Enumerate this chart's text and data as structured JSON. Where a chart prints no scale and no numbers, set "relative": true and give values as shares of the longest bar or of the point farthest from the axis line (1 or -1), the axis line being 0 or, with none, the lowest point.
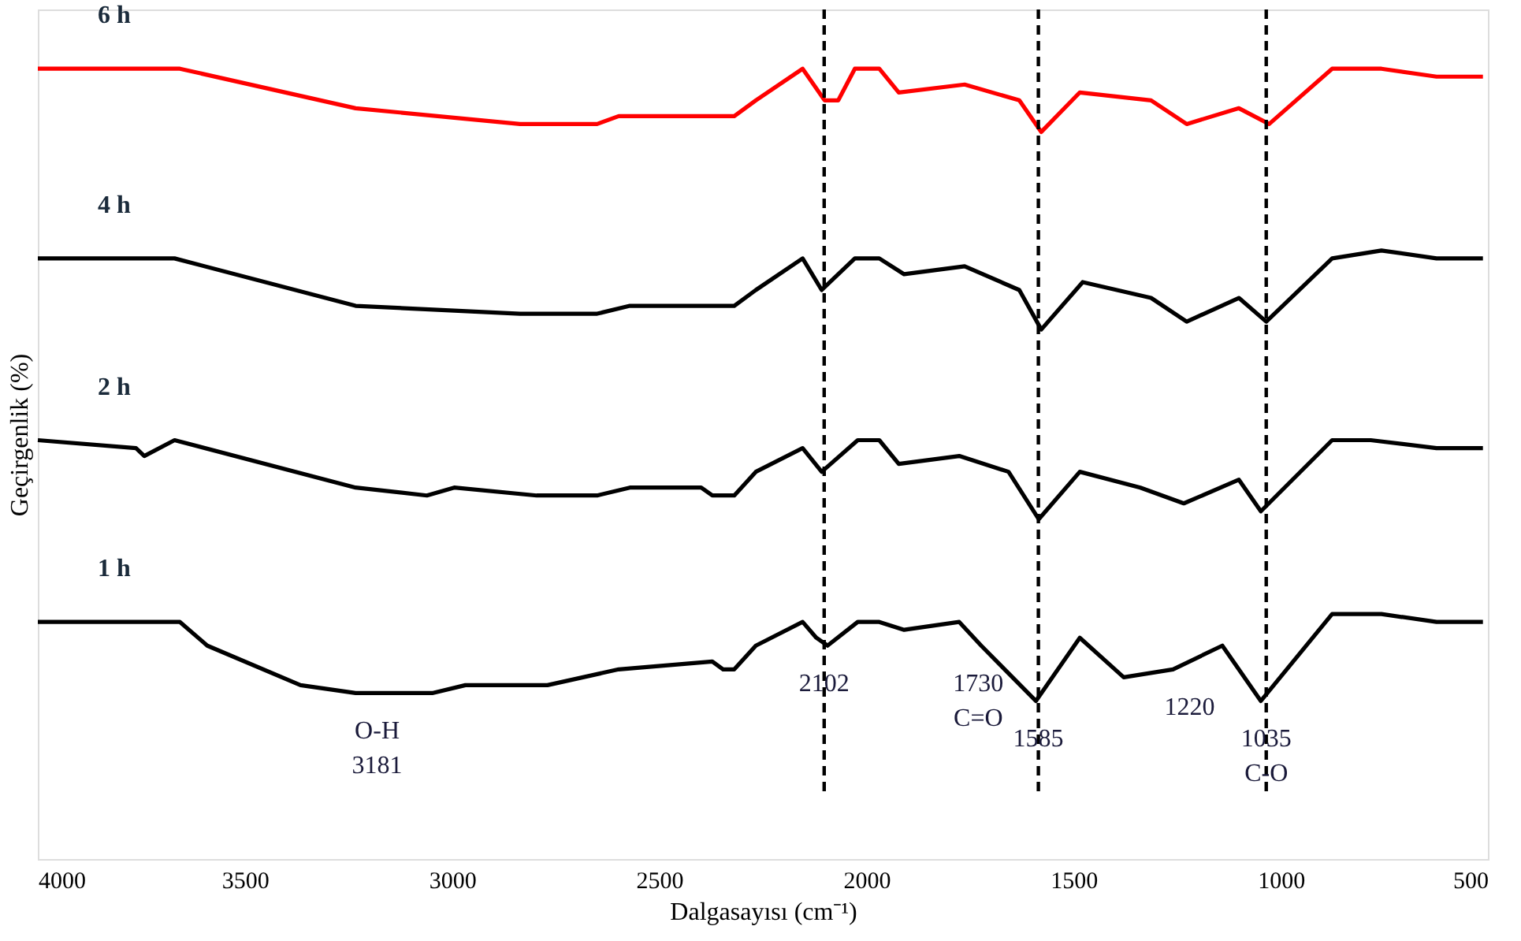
{
  "chart_data": {
    "type": "line",
    "relative": true,
    "xlabel": "Dalgasayısı (cm⁻¹)",
    "ylabel": "Geçirgenlik  (%)",
    "xlim": [
      4000,
      500
    ],
    "xticks": [
      4000,
      3500,
      3000,
      2500,
      2000,
      1500,
      1000,
      500
    ],
    "tick_labels": "x",
    "grid": false,
    "legend": false,
    "line_style": "solid",
    "marker": "none",
    "series": [
      {
        "name": "6 h",
        "color": "#ff0000",
        "x": [
          4000,
          3657,
          3233,
          2836,
          2650,
          2598,
          2333,
          2319,
          2267,
          2154,
          2101,
          2068,
          2028,
          1969,
          1922,
          1763,
          1631,
          1578,
          1485,
          1313,
          1227,
          1101,
          1028,
          876,
          757,
          624,
          512
        ],
        "values": [
          1.0,
          1.0,
          0.95,
          0.93,
          0.93,
          0.94,
          0.94,
          0.94,
          0.96,
          1.0,
          0.96,
          0.96,
          1.0,
          1.0,
          0.97,
          0.98,
          0.96,
          0.92,
          0.97,
          0.96,
          0.93,
          0.95,
          0.93,
          1.0,
          1.0,
          0.99,
          0.99
        ]
      },
      {
        "name": "4 h",
        "color": "#000000",
        "x": [
          4000,
          3763,
          3670,
          3233,
          2836,
          2650,
          2571,
          2346,
          2319,
          2267,
          2154,
          2108,
          2028,
          1969,
          1909,
          1763,
          1631,
          1578,
          1478,
          1313,
          1227,
          1101,
          1035,
          876,
          757,
          624,
          512
        ],
        "values": [
          0.76,
          0.76,
          0.76,
          0.7,
          0.69,
          0.69,
          0.7,
          0.7,
          0.7,
          0.72,
          0.76,
          0.72,
          0.76,
          0.76,
          0.74,
          0.75,
          0.72,
          0.67,
          0.73,
          0.71,
          0.68,
          0.71,
          0.68,
          0.76,
          0.77,
          0.76,
          0.76
        ]
      },
      {
        "name": "2 h",
        "color": "#000000",
        "x": [
          4000,
          3763,
          3743,
          3670,
          3233,
          3061,
          2995,
          2796,
          2650,
          2571,
          2399,
          2372,
          2319,
          2267,
          2154,
          2108,
          2021,
          1969,
          1922,
          1776,
          1657,
          1584,
          1485,
          1339,
          1234,
          1101,
          1048,
          876,
          783,
          624,
          512
        ],
        "values": [
          0.53,
          0.52,
          0.51,
          0.53,
          0.47,
          0.46,
          0.47,
          0.46,
          0.46,
          0.47,
          0.47,
          0.46,
          0.46,
          0.49,
          0.52,
          0.49,
          0.53,
          0.53,
          0.5,
          0.51,
          0.49,
          0.43,
          0.49,
          0.47,
          0.45,
          0.48,
          0.44,
          0.53,
          0.53,
          0.52,
          0.52
        ]
      },
      {
        "name": "1 h",
        "color": "#000000",
        "x": [
          4000,
          3697,
          3657,
          3591,
          3366,
          3233,
          3048,
          2968,
          2770,
          2598,
          2372,
          2346,
          2319,
          2267,
          2154,
          2121,
          2094,
          2021,
          1969,
          1909,
          1776,
          1723,
          1591,
          1485,
          1379,
          1260,
          1141,
          1048,
          876,
          757,
          624,
          512
        ],
        "values": [
          0.3,
          0.3,
          0.3,
          0.27,
          0.22,
          0.21,
          0.21,
          0.22,
          0.22,
          0.24,
          0.25,
          0.24,
          0.24,
          0.27,
          0.3,
          0.28,
          0.27,
          0.3,
          0.3,
          0.29,
          0.3,
          0.27,
          0.2,
          0.28,
          0.23,
          0.24,
          0.27,
          0.2,
          0.31,
          0.31,
          0.3,
          0.3
        ]
      }
    ],
    "ref_lines": [
      {
        "axis": "x",
        "value": 2102,
        "color": "#000000",
        "line_style": "dashed"
      },
      {
        "axis": "x",
        "value": 1585,
        "color": "#000000",
        "line_style": "dashed"
      },
      {
        "axis": "x",
        "value": 1035,
        "color": "#000000",
        "line_style": "dashed"
      }
    ],
    "annotations": [
      {
        "text": "O-H",
        "x": 3181,
        "y": 0.21
      },
      {
        "text": "3181",
        "x": 3181,
        "y": 0.21
      },
      {
        "text": "2102",
        "x": 2102,
        "y": 0.27
      },
      {
        "text": "1730",
        "x": 1730,
        "y": 0.27
      },
      {
        "text": "C=O",
        "x": 1730,
        "y": 0.27
      },
      {
        "text": "1585",
        "x": 1585,
        "y": 0.2
      },
      {
        "text": "1220",
        "x": 1220,
        "y": 0.24
      },
      {
        "text": "1035",
        "x": 1035,
        "y": 0.2
      },
      {
        "text": "C-O",
        "x": 1035,
        "y": 0.2
      }
    ]
  }
}
